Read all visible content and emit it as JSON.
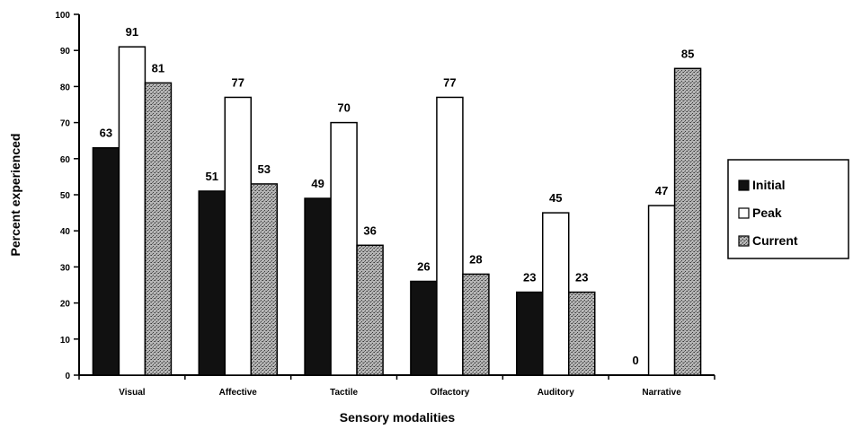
{
  "chart_data": {
    "type": "bar",
    "title": "",
    "xlabel": "Sensory modalities",
    "ylabel": "Percent experienced",
    "ylim": [
      0,
      100
    ],
    "yticks": [
      "0",
      "10",
      "20",
      "30",
      "40",
      "50",
      "60",
      "70",
      "80",
      "90",
      "100"
    ],
    "categories": [
      "Visual",
      "Affective",
      "Tactile",
      "Olfactory",
      "Auditory",
      "Narrative"
    ],
    "series": [
      {
        "name": "Initial",
        "values": [
          63,
          51,
          49,
          26,
          23,
          0
        ],
        "labels": [
          "63",
          "51",
          "49",
          "26",
          "23",
          "0"
        ],
        "color": "#111111",
        "pattern": "solid"
      },
      {
        "name": "Peak",
        "values": [
          91,
          77,
          70,
          77,
          45,
          47
        ],
        "labels": [
          "91",
          "77",
          "70",
          "77",
          "45",
          "47"
        ],
        "color": "#ffffff",
        "pattern": "none"
      },
      {
        "name": "Current",
        "values": [
          81,
          53,
          36,
          28,
          23,
          85
        ],
        "labels": [
          "81",
          "53",
          "36",
          "28",
          "23",
          "85"
        ],
        "color": "#9a9a9a",
        "pattern": "stipple"
      }
    ],
    "legend_position": "right",
    "grid": false
  }
}
